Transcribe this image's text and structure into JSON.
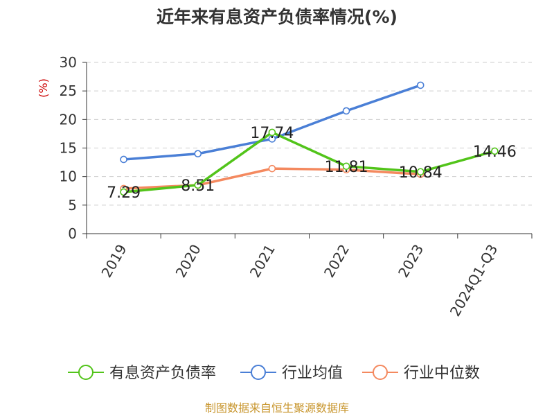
{
  "chart_data": {
    "type": "line",
    "title": "近年来有息资产负债率情况(%)",
    "ylabel": "(%)",
    "xlabel": "",
    "categories": [
      "2019",
      "2020",
      "2021",
      "2022",
      "2023",
      "2024Q1-Q3"
    ],
    "ylim": [
      0,
      30
    ],
    "yticks": [
      0,
      5,
      10,
      15,
      20,
      25,
      30
    ],
    "grid": true,
    "legend_position": "bottom",
    "series": [
      {
        "name": "有息资产负债率",
        "color": "#52c41a",
        "values": [
          7.29,
          8.51,
          17.74,
          11.81,
          10.84,
          14.46
        ],
        "labels": [
          "7.29",
          "8.51",
          "17.74",
          "11.81",
          "10.84",
          "14.46"
        ]
      },
      {
        "name": "行业均值",
        "color": "#4a7fd6",
        "values": [
          13.0,
          14.0,
          16.6,
          21.5,
          26.0,
          null
        ]
      },
      {
        "name": "行业中位数",
        "color": "#f4895f",
        "values": [
          7.9,
          8.5,
          11.4,
          11.2,
          10.4,
          null
        ]
      }
    ]
  },
  "footer": {
    "source": "制图数据来自恒生聚源数据库",
    "source_color": "#c8962e"
  },
  "colors": {
    "title": "#333333",
    "axis": "#333333",
    "ylabel": "#cc0000",
    "grid": "#cccccc"
  }
}
